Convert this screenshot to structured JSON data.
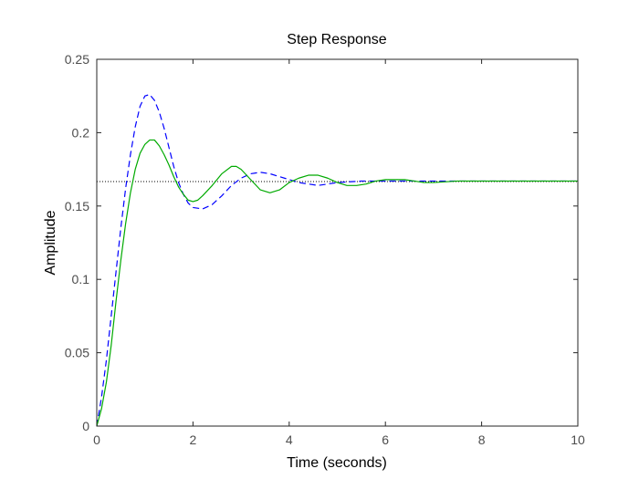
{
  "chart_data": {
    "type": "line",
    "title": "Step Response",
    "xlabel": "Time (seconds)",
    "ylabel": "Amplitude",
    "xlim": [
      0,
      10
    ],
    "ylim": [
      0,
      0.25
    ],
    "xticks": [
      0,
      2,
      4,
      6,
      8,
      10
    ],
    "yticks": [
      0,
      0.05,
      0.1,
      0.15,
      0.2,
      0.25
    ],
    "xtick_labels": [
      "0",
      "2",
      "4",
      "6",
      "8",
      "10"
    ],
    "ytick_labels": [
      "0",
      "0.05",
      "0.1",
      "0.15",
      "0.2",
      "0.25"
    ],
    "grid": false,
    "legend": "none",
    "reference_line": {
      "y": 0.1667,
      "style": "dotted",
      "color": "#000000"
    },
    "series": [
      {
        "style": "dashed",
        "color": "#0000ff",
        "x": [
          0,
          0.1,
          0.2,
          0.3,
          0.4,
          0.5,
          0.6,
          0.7,
          0.8,
          0.9,
          1.0,
          1.1,
          1.2,
          1.3,
          1.4,
          1.5,
          1.6,
          1.7,
          1.8,
          1.9,
          2.0,
          2.2,
          2.4,
          2.6,
          2.8,
          3.0,
          3.2,
          3.4,
          3.6,
          3.8,
          4.0,
          4.2,
          4.4,
          4.6,
          4.8,
          5.0,
          5.5,
          6.0,
          6.5,
          7.0,
          7.5,
          8.0,
          8.5,
          9.0,
          9.5,
          10.0
        ],
        "y": [
          0,
          0.02,
          0.045,
          0.075,
          0.105,
          0.135,
          0.162,
          0.185,
          0.204,
          0.218,
          0.225,
          0.226,
          0.222,
          0.214,
          0.203,
          0.19,
          0.177,
          0.166,
          0.158,
          0.152,
          0.149,
          0.148,
          0.151,
          0.157,
          0.164,
          0.169,
          0.172,
          0.173,
          0.172,
          0.17,
          0.168,
          0.166,
          0.165,
          0.164,
          0.165,
          0.166,
          0.167,
          0.167,
          0.167,
          0.167,
          0.167,
          0.167,
          0.167,
          0.167,
          0.167,
          0.167
        ]
      },
      {
        "style": "solid",
        "color": "#00aa00",
        "x": [
          0,
          0.1,
          0.2,
          0.3,
          0.4,
          0.5,
          0.6,
          0.7,
          0.8,
          0.9,
          1.0,
          1.1,
          1.2,
          1.3,
          1.4,
          1.5,
          1.6,
          1.7,
          1.8,
          1.9,
          2.0,
          2.1,
          2.2,
          2.4,
          2.6,
          2.8,
          2.9,
          3.0,
          3.2,
          3.4,
          3.6,
          3.8,
          4.0,
          4.2,
          4.4,
          4.6,
          4.8,
          5.0,
          5.2,
          5.4,
          5.6,
          5.8,
          6.0,
          6.2,
          6.4,
          6.6,
          6.8,
          7.0,
          7.5,
          8.0,
          8.5,
          9.0,
          9.5,
          10.0
        ],
        "y": [
          0,
          0.012,
          0.03,
          0.055,
          0.085,
          0.113,
          0.138,
          0.159,
          0.175,
          0.186,
          0.192,
          0.195,
          0.195,
          0.191,
          0.185,
          0.178,
          0.17,
          0.163,
          0.158,
          0.154,
          0.153,
          0.154,
          0.157,
          0.164,
          0.172,
          0.177,
          0.177,
          0.175,
          0.168,
          0.161,
          0.159,
          0.161,
          0.166,
          0.169,
          0.171,
          0.171,
          0.169,
          0.166,
          0.164,
          0.164,
          0.165,
          0.167,
          0.168,
          0.168,
          0.168,
          0.167,
          0.166,
          0.166,
          0.167,
          0.167,
          0.167,
          0.167,
          0.167,
          0.167
        ]
      }
    ]
  }
}
